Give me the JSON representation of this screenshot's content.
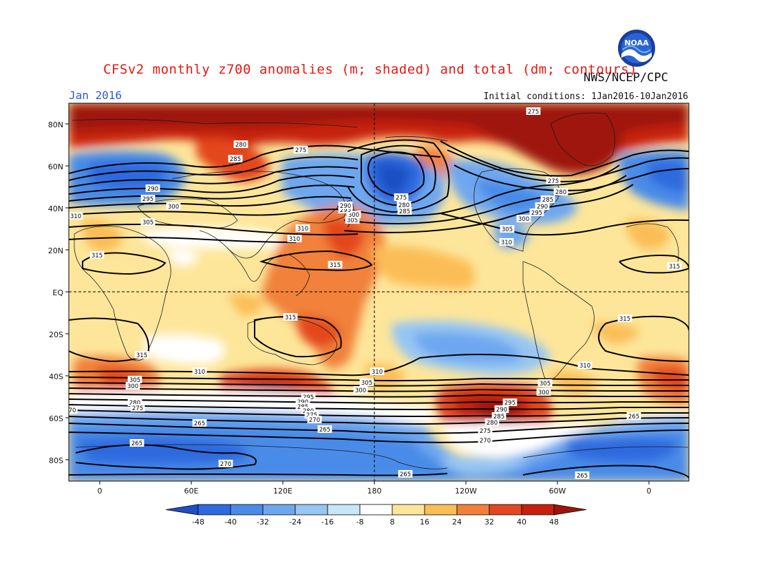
{
  "header": {
    "title": "CFSv2 monthly z700 anomalies (m; shaded) and total (dm; contours)",
    "agency": "NWS/NCEP/CPC",
    "period": "Jan 2016",
    "initial_conditions": "Initial conditions: 1Jan2016-10Jan2016",
    "logo_text": "NOAA"
  },
  "map": {
    "lon_labels": [
      "0",
      "60E",
      "120E",
      "180",
      "120W",
      "60W",
      "0"
    ],
    "lat_labels": [
      "80N",
      "60N",
      "40N",
      "20N",
      "EQ",
      "20S",
      "40S",
      "60S",
      "80S"
    ]
  },
  "colorbar": {
    "labels": [
      "-48",
      "-40",
      "-32",
      "-24",
      "-16",
      "-8",
      "8",
      "16",
      "24",
      "32",
      "40",
      "48"
    ],
    "colors": [
      "#1d4fc4",
      "#2f6bdf",
      "#4a8be8",
      "#6ea7ef",
      "#96c6f3",
      "#c6e7f6",
      "#ffffff",
      "#fde69a",
      "#fbbd56",
      "#f1813a",
      "#e4471f",
      "#c7200f",
      "#9e1408"
    ]
  },
  "contour_labels": [
    {
      "text": "275"
    },
    {
      "text": "280"
    },
    {
      "text": "285"
    },
    {
      "text": "275"
    },
    {
      "text": "290"
    },
    {
      "text": "295"
    },
    {
      "text": "300"
    },
    {
      "text": "305"
    },
    {
      "text": "310"
    },
    {
      "text": "310"
    },
    {
      "text": "315"
    },
    {
      "text": "310"
    },
    {
      "text": "305"
    },
    {
      "text": "300"
    },
    {
      "text": "295"
    },
    {
      "text": "290"
    },
    {
      "text": "315"
    },
    {
      "text": "275"
    },
    {
      "text": "280"
    },
    {
      "text": "285"
    },
    {
      "text": "275"
    },
    {
      "text": "280"
    },
    {
      "text": "285"
    },
    {
      "text": "290"
    },
    {
      "text": "295"
    },
    {
      "text": "300"
    },
    {
      "text": "305"
    },
    {
      "text": "310"
    },
    {
      "text": "315"
    },
    {
      "text": "315"
    },
    {
      "text": "315"
    },
    {
      "text": "315"
    },
    {
      "text": "310"
    },
    {
      "text": "310"
    },
    {
      "text": "310"
    },
    {
      "text": "305"
    },
    {
      "text": "300"
    },
    {
      "text": "280"
    },
    {
      "text": "275"
    },
    {
      "text": "305"
    },
    {
      "text": "300"
    },
    {
      "text": "295"
    },
    {
      "text": "290"
    },
    {
      "text": "285"
    },
    {
      "text": "280"
    },
    {
      "text": "275"
    },
    {
      "text": "270"
    },
    {
      "text": "305"
    },
    {
      "text": "300"
    },
    {
      "text": "295"
    },
    {
      "text": "290"
    },
    {
      "text": "285"
    },
    {
      "text": "280"
    },
    {
      "text": "275"
    },
    {
      "text": "270"
    },
    {
      "text": "265"
    },
    {
      "text": "265"
    },
    {
      "text": "265"
    },
    {
      "text": "265"
    },
    {
      "text": "270"
    },
    {
      "text": "265"
    },
    {
      "text": "265"
    },
    {
      "text": "70"
    }
  ]
}
